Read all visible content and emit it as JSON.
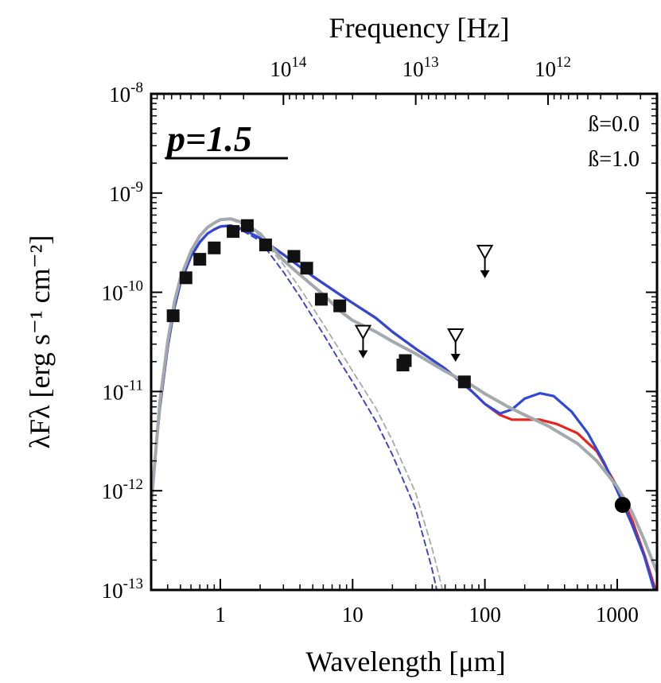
{
  "chart_data": {
    "type": "line",
    "xlabel": "Wavelength [μm]",
    "ylabel": "λFλ  [erg s⁻¹ cm⁻²]",
    "top_axis_label": "Frequency [Hz]",
    "xscale": "log",
    "yscale": "log",
    "xlim": [
      0.3,
      2000
    ],
    "ylim": [
      1e-13,
      1e-08
    ],
    "x_tick_labels": [
      "1",
      "10",
      "100",
      "1000"
    ],
    "y_tick_labels": [
      {
        "base": "10",
        "exp": "-8"
      },
      {
        "base": "10",
        "exp": "-9"
      },
      {
        "base": "10",
        "exp": "-10"
      },
      {
        "base": "10",
        "exp": "-11"
      },
      {
        "base": "10",
        "exp": "-12"
      },
      {
        "base": "10",
        "exp": "-13"
      }
    ],
    "top_tick_labels": [
      {
        "base": "10",
        "exp": "14"
      },
      {
        "base": "10",
        "exp": "13"
      },
      {
        "base": "10",
        "exp": "12"
      }
    ],
    "panel_label": "p=1.5",
    "legend_position": "top-right",
    "series": [
      {
        "name": "ß=0.0",
        "color": "#e8231c",
        "style": "solid",
        "points": [
          [
            0.3,
            8e-13
          ],
          [
            0.35,
            7e-12
          ],
          [
            0.4,
            2.8e-11
          ],
          [
            0.45,
            7e-11
          ],
          [
            0.5,
            1.25e-10
          ],
          [
            0.6,
            2.3e-10
          ],
          [
            0.7,
            3.2e-10
          ],
          [
            0.8,
            3.9e-10
          ],
          [
            0.9,
            4.3e-10
          ],
          [
            1.0,
            4.6e-10
          ],
          [
            1.2,
            4.7e-10
          ],
          [
            1.5,
            4.3e-10
          ],
          [
            2.0,
            3.5e-10
          ],
          [
            3.0,
            2.4e-10
          ],
          [
            5.0,
            1.45e-10
          ],
          [
            8.0,
            9.5e-11
          ],
          [
            10.0,
            7.8e-11
          ],
          [
            15.0,
            5.5e-11
          ],
          [
            20.0,
            4e-11
          ],
          [
            30.0,
            2.7e-11
          ],
          [
            50.0,
            1.7e-11
          ],
          [
            80.0,
            1e-11
          ],
          [
            100.0,
            7.5e-12
          ],
          [
            130.0,
            5.8e-12
          ],
          [
            160.0,
            5.2e-12
          ],
          [
            200.0,
            5.2e-12
          ],
          [
            260.0,
            5.2e-12
          ],
          [
            350.0,
            4.7e-12
          ],
          [
            500.0,
            3.8e-12
          ],
          [
            700.0,
            2.5e-12
          ],
          [
            1000.0,
            1.1e-12
          ],
          [
            1300.0,
            5e-13
          ],
          [
            1600.0,
            2.3e-13
          ],
          [
            2000.0,
            9e-14
          ]
        ]
      },
      {
        "name": "ß=1.0",
        "color": "#2e48d8",
        "style": "solid",
        "points": [
          [
            0.3,
            8e-13
          ],
          [
            0.35,
            7e-12
          ],
          [
            0.4,
            2.8e-11
          ],
          [
            0.45,
            7e-11
          ],
          [
            0.5,
            1.25e-10
          ],
          [
            0.6,
            2.3e-10
          ],
          [
            0.7,
            3.2e-10
          ],
          [
            0.8,
            3.9e-10
          ],
          [
            0.9,
            4.3e-10
          ],
          [
            1.0,
            4.6e-10
          ],
          [
            1.2,
            4.7e-10
          ],
          [
            1.5,
            4.3e-10
          ],
          [
            2.0,
            3.5e-10
          ],
          [
            3.0,
            2.4e-10
          ],
          [
            5.0,
            1.45e-10
          ],
          [
            8.0,
            9.5e-11
          ],
          [
            10.0,
            7.8e-11
          ],
          [
            15.0,
            5.5e-11
          ],
          [
            20.0,
            4e-11
          ],
          [
            30.0,
            2.7e-11
          ],
          [
            50.0,
            1.7e-11
          ],
          [
            80.0,
            1e-11
          ],
          [
            100.0,
            7.5e-12
          ],
          [
            130.0,
            6e-12
          ],
          [
            160.0,
            6.6e-12
          ],
          [
            200.0,
            8.5e-12
          ],
          [
            260.0,
            9.6e-12
          ],
          [
            330.0,
            9e-12
          ],
          [
            450.0,
            6.3e-12
          ],
          [
            600.0,
            3.8e-12
          ],
          [
            800.0,
            1.9e-12
          ],
          [
            1000.0,
            1e-12
          ],
          [
            1300.0,
            4.5e-13
          ],
          [
            1600.0,
            2.2e-13
          ],
          [
            2000.0,
            8e-14
          ]
        ]
      },
      {
        "name": "",
        "color": "#a4a9ae",
        "style": "solid",
        "points": [
          [
            0.3,
            7e-13
          ],
          [
            0.35,
            8e-12
          ],
          [
            0.4,
            3.2e-11
          ],
          [
            0.45,
            8e-11
          ],
          [
            0.5,
            1.4e-10
          ],
          [
            0.6,
            2.6e-10
          ],
          [
            0.7,
            3.7e-10
          ],
          [
            0.8,
            4.5e-10
          ],
          [
            0.9,
            5e-10
          ],
          [
            1.0,
            5.4e-10
          ],
          [
            1.2,
            5.5e-10
          ],
          [
            1.5,
            5e-10
          ],
          [
            2.0,
            3.9e-10
          ],
          [
            3.0,
            2.1e-10
          ],
          [
            4.0,
            1.5e-10
          ],
          [
            6.0,
            9.5e-11
          ],
          [
            8.0,
            6.5e-11
          ],
          [
            10.0,
            5.2e-11
          ],
          [
            15.0,
            4e-11
          ],
          [
            20.0,
            3.2e-11
          ],
          [
            30.0,
            2.4e-11
          ],
          [
            50.0,
            1.6e-11
          ],
          [
            80.0,
            1.15e-11
          ],
          [
            100.0,
            9.5e-12
          ],
          [
            150.0,
            7e-12
          ],
          [
            200.0,
            5.8e-12
          ],
          [
            300.0,
            4.5e-12
          ],
          [
            500.0,
            3e-12
          ],
          [
            700.0,
            2e-12
          ],
          [
            1000.0,
            1.1e-12
          ],
          [
            1300.0,
            6e-13
          ],
          [
            1600.0,
            3.2e-13
          ],
          [
            2000.0,
            1.5e-13
          ]
        ]
      },
      {
        "name": "",
        "color": "#e8231c",
        "style": "dashed",
        "points": [
          [
            0.3,
            8e-13
          ],
          [
            0.35,
            7e-12
          ],
          [
            0.4,
            2.8e-11
          ],
          [
            0.45,
            7e-11
          ],
          [
            0.5,
            1.25e-10
          ],
          [
            0.6,
            2.3e-10
          ],
          [
            0.7,
            3.2e-10
          ],
          [
            0.8,
            3.9e-10
          ],
          [
            0.9,
            4.3e-10
          ],
          [
            1.0,
            4.6e-10
          ],
          [
            1.2,
            4.6e-10
          ],
          [
            1.5,
            4.1e-10
          ],
          [
            2.0,
            3.3e-10
          ],
          [
            3.0,
            1.6e-10
          ],
          [
            4.0,
            9e-11
          ],
          [
            6.0,
            3.8e-11
          ],
          [
            8.0,
            2e-11
          ],
          [
            10.0,
            1.25e-11
          ],
          [
            15.0,
            5e-12
          ],
          [
            20.0,
            2.3e-12
          ],
          [
            30.0,
            6.5e-13
          ],
          [
            40.0,
            1.6e-13
          ],
          [
            45.0,
            8e-14
          ]
        ]
      },
      {
        "name": "",
        "color": "#2e48d8",
        "style": "dashed",
        "points": [
          [
            0.3,
            8e-13
          ],
          [
            0.35,
            7e-12
          ],
          [
            0.4,
            2.8e-11
          ],
          [
            0.45,
            7e-11
          ],
          [
            0.5,
            1.25e-10
          ],
          [
            0.6,
            2.3e-10
          ],
          [
            0.7,
            3.2e-10
          ],
          [
            0.8,
            3.9e-10
          ],
          [
            0.9,
            4.3e-10
          ],
          [
            1.0,
            4.6e-10
          ],
          [
            1.2,
            4.6e-10
          ],
          [
            1.5,
            4.1e-10
          ],
          [
            2.0,
            3.3e-10
          ],
          [
            3.0,
            1.6e-10
          ],
          [
            4.0,
            9e-11
          ],
          [
            6.0,
            3.8e-11
          ],
          [
            8.0,
            2e-11
          ],
          [
            10.0,
            1.25e-11
          ],
          [
            15.0,
            5e-12
          ],
          [
            20.0,
            2.3e-12
          ],
          [
            30.0,
            6.5e-13
          ],
          [
            40.0,
            1.6e-13
          ],
          [
            45.0,
            8e-14
          ]
        ]
      },
      {
        "name": "",
        "color": "#a4a9ae",
        "style": "dashed",
        "points": [
          [
            0.3,
            7e-13
          ],
          [
            0.35,
            8e-12
          ],
          [
            0.4,
            3.2e-11
          ],
          [
            0.45,
            8e-11
          ],
          [
            0.5,
            1.4e-10
          ],
          [
            0.6,
            2.6e-10
          ],
          [
            0.7,
            3.7e-10
          ],
          [
            0.8,
            4.5e-10
          ],
          [
            0.9,
            5e-10
          ],
          [
            1.0,
            5.4e-10
          ],
          [
            1.2,
            5.4e-10
          ],
          [
            1.5,
            4.8e-10
          ],
          [
            2.0,
            3.7e-10
          ],
          [
            3.0,
            1.9e-10
          ],
          [
            4.0,
            1.1e-10
          ],
          [
            6.0,
            4.8e-11
          ],
          [
            8.0,
            2.6e-11
          ],
          [
            10.0,
            1.6e-11
          ],
          [
            15.0,
            6.8e-12
          ],
          [
            20.0,
            3.2e-12
          ],
          [
            30.0,
            9.5e-13
          ],
          [
            40.0,
            2.6e-13
          ],
          [
            50.0,
            8e-14
          ]
        ]
      }
    ],
    "observations": [
      [
        0.44,
        5.8e-11
      ],
      [
        0.55,
        1.4e-10
      ],
      [
        0.7,
        2.15e-10
      ],
      [
        0.9,
        2.8e-10
      ],
      [
        1.25,
        4.1e-10
      ],
      [
        1.6,
        4.7e-10
      ],
      [
        2.2,
        3e-10
      ],
      [
        3.6,
        2.3e-10
      ],
      [
        4.5,
        1.75e-10
      ],
      [
        5.8,
        8.5e-11
      ],
      [
        8.0,
        7.3e-11
      ],
      [
        24.0,
        1.85e-11
      ],
      [
        25.0,
        2.05e-11
      ],
      [
        70.0,
        1.25e-11
      ]
    ],
    "upper_limits": [
      [
        12.0,
        3.9e-11
      ],
      [
        60.0,
        3.6e-11
      ],
      [
        100.0,
        2.5e-10
      ]
    ],
    "millimeter_point": [
      [
        1100.0,
        7.2e-13
      ]
    ]
  }
}
